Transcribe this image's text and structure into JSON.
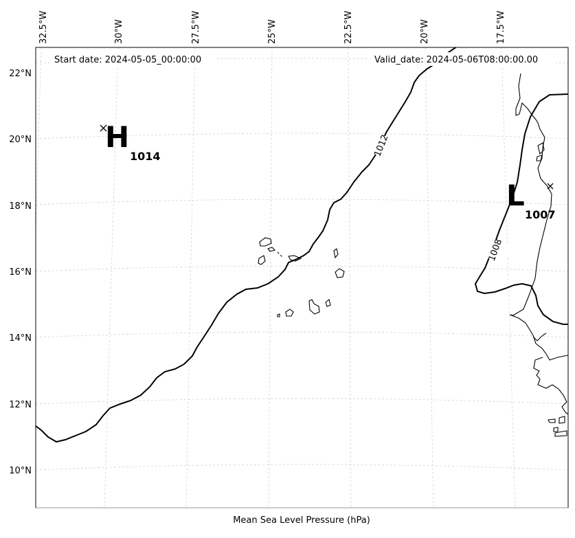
{
  "map": {
    "start_date": "Start date: 2024-05-05_00:00:00",
    "valid_date": "Valid_date: 2024-05-06T08:00:00.00",
    "caption": "Mean Sea Level Pressure (hPa)",
    "lon_labels": [
      "32.5°W",
      "30°W",
      "27.5°W",
      "25°W",
      "22.5°W",
      "20°W",
      "17.5°W"
    ],
    "lat_labels": [
      "22°N",
      "20°N",
      "18°N",
      "16°N",
      "14°N",
      "12°N",
      "10°N"
    ],
    "contours": [
      {
        "level": "1012",
        "label": "1012"
      },
      {
        "level": "1008",
        "label": "1008"
      }
    ],
    "high": {
      "symbol": "H",
      "value": "1014"
    },
    "low": {
      "symbol": "L",
      "value": "1007"
    },
    "colors": {
      "isobar": "#000000",
      "coast": "#000000",
      "grid": "#cccccc",
      "frame": "#000000"
    }
  }
}
